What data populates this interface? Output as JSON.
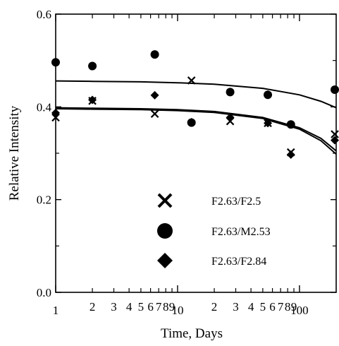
{
  "chart_data": {
    "type": "scatter",
    "title": "",
    "xlabel": "Time, Days",
    "ylabel": "Relative Intensity",
    "xscale": "log",
    "xlim": [
      1,
      200
    ],
    "ylim": [
      0.0,
      0.6
    ],
    "x_major_ticks": [
      {
        "value": 1,
        "label": "1"
      },
      {
        "value": 10,
        "label": "10"
      },
      {
        "value": 100,
        "label": "100"
      }
    ],
    "x_minor_ticks": [
      {
        "value": 2,
        "label": "2"
      },
      {
        "value": 3,
        "label": "3"
      },
      {
        "value": 4,
        "label": "4"
      },
      {
        "value": 5,
        "label": "5"
      },
      {
        "value": 6,
        "label": "6"
      },
      {
        "value": 7,
        "label": "7"
      },
      {
        "value": 8,
        "label": "8"
      },
      {
        "value": 9,
        "label": "9"
      },
      {
        "value": 20,
        "label": "2"
      },
      {
        "value": 30,
        "label": "3"
      },
      {
        "value": 40,
        "label": "4"
      },
      {
        "value": 50,
        "label": "5"
      },
      {
        "value": 60,
        "label": "6"
      },
      {
        "value": 70,
        "label": "7"
      },
      {
        "value": 80,
        "label": "8"
      },
      {
        "value": 90,
        "label": "9"
      }
    ],
    "y_ticks": [
      {
        "value": 0.0,
        "label": "0.0"
      },
      {
        "value": 0.2,
        "label": "0.2"
      },
      {
        "value": 0.4,
        "label": "0.4"
      },
      {
        "value": 0.6,
        "label": "0.6"
      }
    ],
    "legend_position": "center",
    "series": [
      {
        "name": "F2.63/F2.5",
        "marker": "x",
        "x": [
          1,
          2,
          6.5,
          13,
          27,
          55,
          85,
          200
        ],
        "y": [
          0.377,
          0.413,
          0.385,
          0.457,
          0.369,
          0.365,
          0.302,
          0.341
        ],
        "fit": {
          "x": [
            1,
            2,
            5,
            10,
            20,
            50,
            100,
            150,
            200
          ],
          "y": [
            0.398,
            0.397,
            0.396,
            0.394,
            0.39,
            0.377,
            0.355,
            0.332,
            0.305
          ]
        }
      },
      {
        "name": "F2.63/M2.53",
        "marker": "circle",
        "x": [
          1,
          2,
          6.5,
          13,
          27,
          55,
          85,
          200
        ],
        "y": [
          0.496,
          0.488,
          0.513,
          0.366,
          0.432,
          0.426,
          0.362,
          0.437
        ],
        "fit": {
          "x": [
            1,
            2,
            5,
            10,
            20,
            50,
            100,
            150,
            200
          ],
          "y": [
            0.456,
            0.455,
            0.454,
            0.452,
            0.449,
            0.44,
            0.426,
            0.412,
            0.398
          ]
        }
      },
      {
        "name": "F2.63/F2.84",
        "marker": "diamond",
        "x": [
          1,
          2,
          6.5,
          13,
          27,
          55,
          85,
          200
        ],
        "y": [
          0.387,
          0.415,
          0.425,
          0.367,
          0.377,
          0.365,
          0.297,
          0.328
        ],
        "fit": {
          "x": [
            1,
            2,
            5,
            10,
            20,
            50,
            100,
            150,
            200
          ],
          "y": [
            0.396,
            0.395,
            0.394,
            0.392,
            0.388,
            0.375,
            0.352,
            0.327,
            0.298
          ]
        }
      }
    ]
  }
}
